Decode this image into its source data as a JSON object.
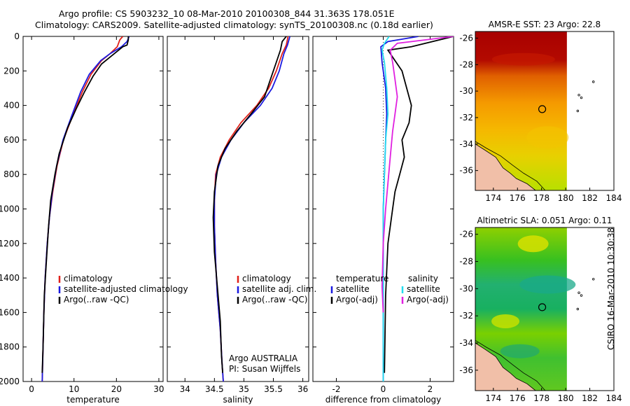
{
  "title": {
    "line1": "Argo profile: CS 5903232_10 08-Mar-2010 20100308_844 31.363S 178.051E",
    "line2": "Climatology: CARS2009. Satellite-adjusted climatology: synTS_20100308.nc (0.18d earlier)"
  },
  "stamp": "CSIRO 16-Mar-2010 10:30:38",
  "colors": {
    "climatology": "#e0201a",
    "satellite": "#1a1ae0",
    "argo": "#000000",
    "sat_salinity": "#22dcef",
    "argo_salinity_adj": "#e020e0"
  },
  "chart_data": [
    {
      "type": "line",
      "xlabel": "temperature",
      "xlim": [
        -2,
        31
      ],
      "ylim": [
        2000,
        0
      ],
      "xticks": [
        0,
        10,
        20,
        30
      ],
      "yticks": [
        0,
        200,
        400,
        600,
        800,
        1000,
        1200,
        1400,
        1600,
        1800,
        2000
      ],
      "legend": [
        "climatology",
        "satellite-adjusted climatology",
        "Argo(..raw -QC)"
      ],
      "series": [
        {
          "name": "climatology",
          "color": "#e0201a",
          "x": [
            21.5,
            20.8,
            20.2,
            18.5,
            16.5,
            14.0,
            12.0,
            9.5,
            7.5,
            6.0,
            5.0,
            4.2,
            3.7,
            3.2,
            2.9,
            2.7,
            2.5
          ],
          "y": [
            0,
            20,
            60,
            100,
            140,
            220,
            320,
            470,
            600,
            750,
            900,
            1050,
            1200,
            1400,
            1600,
            1800,
            2000
          ]
        },
        {
          "name": "satellite-adjusted climatology",
          "color": "#1a1ae0",
          "x": [
            23.0,
            22.5,
            21.2,
            18.5,
            16.3,
            13.6,
            11.6,
            9.3,
            7.4,
            5.9,
            4.9,
            4.2,
            3.7,
            3.2,
            2.9,
            2.7,
            2.5
          ],
          "y": [
            0,
            30,
            60,
            100,
            140,
            220,
            320,
            470,
            600,
            750,
            900,
            1050,
            1200,
            1400,
            1600,
            1800,
            2000
          ]
        },
        {
          "name": "Argo(..raw -QC)",
          "color": "#000000",
          "x": [
            22.8,
            22.8,
            22.5,
            21.5,
            19.0,
            16.5,
            14.5,
            12.5,
            10.5,
            8.5,
            6.5,
            5.5,
            4.5,
            4.0,
            3.5,
            3.0,
            2.7,
            2.5
          ],
          "y": [
            0,
            20,
            50,
            60,
            110,
            160,
            230,
            320,
            420,
            530,
            680,
            800,
            950,
            1100,
            1300,
            1500,
            1800,
            1950
          ]
        }
      ]
    },
    {
      "type": "line",
      "xlabel": "salinity",
      "xlim": [
        33.7,
        36.1
      ],
      "ylim": [
        2000,
        0
      ],
      "xticks": [
        34,
        34.5,
        35,
        35.5,
        36
      ],
      "legend": [
        "climatology",
        "satellite adj. clim.",
        "Argo(..raw -QC)"
      ],
      "annotation": [
        "Argo AUSTRALIA",
        "PI: Susan Wijffels"
      ],
      "series": [
        {
          "name": "climatology",
          "color": "#e0201a",
          "x": [
            35.75,
            35.72,
            35.65,
            35.55,
            35.42,
            35.22,
            34.95,
            34.75,
            34.6,
            34.52,
            34.5,
            34.5,
            34.52,
            34.55,
            34.6,
            34.63,
            34.65
          ],
          "y": [
            0,
            50,
            100,
            200,
            300,
            400,
            500,
            600,
            700,
            800,
            950,
            1100,
            1300,
            1500,
            1700,
            1900,
            2000
          ]
        },
        {
          "name": "satellite adj. clim.",
          "color": "#1a1ae0",
          "x": [
            35.78,
            35.74,
            35.68,
            35.6,
            35.48,
            35.28,
            35.0,
            34.78,
            34.62,
            34.53,
            34.5,
            34.5,
            34.52,
            34.55,
            34.6,
            34.63,
            34.65
          ],
          "y": [
            0,
            50,
            100,
            200,
            300,
            400,
            500,
            600,
            700,
            800,
            950,
            1100,
            1300,
            1500,
            1700,
            1900,
            2000
          ]
        },
        {
          "name": "Argo(..raw -QC)",
          "color": "#000000",
          "x": [
            35.72,
            35.65,
            35.62,
            35.55,
            35.45,
            35.35,
            35.12,
            34.88,
            34.68,
            34.56,
            34.5,
            34.48,
            34.5,
            34.55,
            34.6,
            34.62,
            34.64
          ],
          "y": [
            0,
            30,
            80,
            150,
            250,
            350,
            450,
            550,
            650,
            750,
            900,
            1050,
            1250,
            1450,
            1650,
            1850,
            1950
          ]
        }
      ]
    },
    {
      "type": "line",
      "xlabel": "difference from climatology",
      "xlim": [
        -3,
        3
      ],
      "ylim": [
        2000,
        0
      ],
      "xticks": [
        -2,
        0,
        2
      ],
      "legend_left": {
        "heading": "temperature",
        "entries": [
          "satellite",
          "Argo(-adj)"
        ]
      },
      "legend_right": {
        "heading": "salinity",
        "entries": [
          "satellite",
          "Argo(-adj)"
        ]
      },
      "series": [
        {
          "name": "temperature satellite",
          "color": "#1a1ae0",
          "x": [
            1.5,
            0.2,
            -0.1,
            -0.05,
            0.1,
            0.15,
            0.1,
            0.05,
            0.0,
            0.0,
            0.0,
            0.0,
            0.0
          ],
          "y": [
            0,
            30,
            60,
            150,
            300,
            450,
            600,
            800,
            1000,
            1300,
            1600,
            1800,
            2000
          ]
        },
        {
          "name": "temperature Argo(-adj)",
          "color": "#000000",
          "x": [
            3.0,
            1.2,
            0.2,
            0.4,
            0.8,
            1.0,
            1.2,
            1.1,
            0.8,
            0.9,
            0.7,
            0.5,
            0.4,
            0.2,
            0.1,
            0.05
          ],
          "y": [
            0,
            60,
            80,
            120,
            200,
            300,
            400,
            500,
            600,
            700,
            800,
            900,
            1000,
            1200,
            1500,
            1950
          ]
        },
        {
          "name": "salinity satellite",
          "color": "#22dcef",
          "x": [
            0.25,
            0.05,
            -0.05,
            0.05,
            0.15,
            0.2,
            0.1,
            0.05,
            0.0,
            0.0,
            0.0,
            0.0,
            0.0
          ],
          "y": [
            0,
            40,
            80,
            150,
            300,
            450,
            600,
            800,
            1000,
            1300,
            1600,
            1800,
            2000
          ]
        },
        {
          "name": "salinity Argo(-adj)",
          "color": "#e020e0",
          "x": [
            3.0,
            0.6,
            0.3,
            0.4,
            0.5,
            0.6,
            0.5,
            0.4,
            0.3,
            0.2,
            0.1,
            0.0,
            -0.05,
            0.0
          ],
          "y": [
            0,
            40,
            80,
            150,
            250,
            350,
            450,
            550,
            700,
            850,
            1000,
            1200,
            1450,
            1600
          ]
        }
      ]
    },
    {
      "type": "heatmap",
      "title": "AMSR-E SST: 23 Argo: 22.8",
      "xlim": [
        172.5,
        184
      ],
      "ylim": [
        -37.5,
        -25.5
      ],
      "xticks": [
        174,
        176,
        178,
        180,
        182,
        184
      ],
      "yticks": [
        -26,
        -28,
        -30,
        -32,
        -34,
        -36
      ],
      "float_position": [
        178.051,
        -31.363
      ]
    },
    {
      "type": "heatmap",
      "title": "Altimetric SLA: 0.051 Argo: 0.11",
      "xlim": [
        172.5,
        184
      ],
      "ylim": [
        -37.5,
        -25.5
      ],
      "xticks": [
        174,
        176,
        178,
        180,
        182,
        184
      ],
      "yticks": [
        -26,
        -28,
        -30,
        -32,
        -34,
        -36
      ],
      "float_position": [
        178.051,
        -31.363
      ]
    }
  ]
}
